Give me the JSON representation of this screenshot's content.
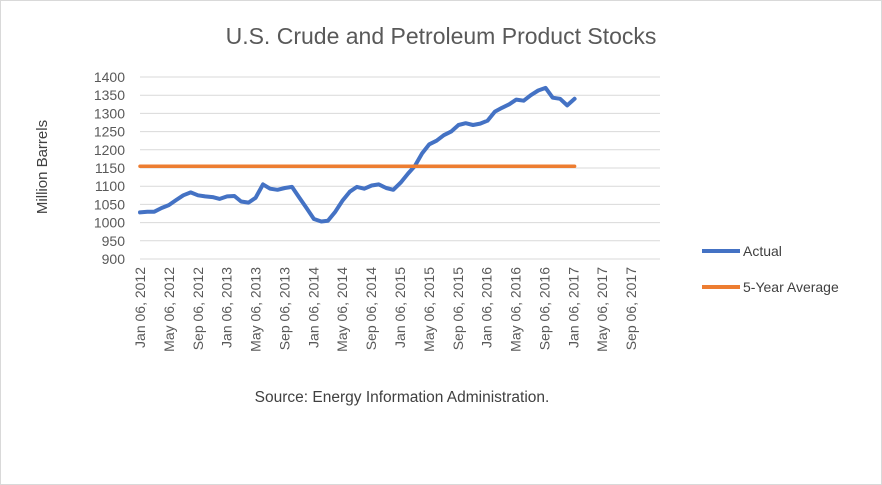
{
  "chart_data": {
    "type": "line",
    "title": "U.S. Crude and Petroleum Product Stocks",
    "xlabel": "",
    "ylabel": "Million Barrels",
    "source": "Source: Energy Information Administration.",
    "ylim": [
      900,
      1400
    ],
    "yticks": [
      "900",
      "950",
      "1000",
      "1050",
      "1100",
      "1150",
      "1200",
      "1250",
      "1300",
      "1350",
      "1400"
    ],
    "xticks": [
      "Jan 06, 2012",
      "May 06, 2012",
      "Sep 06, 2012",
      "Jan 06, 2013",
      "May 06, 2013",
      "Sep 06, 2013",
      "Jan 06, 2014",
      "May 06, 2014",
      "Sep 06, 2014",
      "Jan 06, 2015",
      "May 06, 2015",
      "Sep 06, 2015",
      "Jan 06, 2016",
      "May 06, 2016",
      "Sep 06, 2016",
      "Jan 06, 2017",
      "May 06, 2017",
      "Sep 06, 2017"
    ],
    "grid": true,
    "legend_position": "right",
    "series": [
      {
        "name": "Actual",
        "color": "#4472c4",
        "x": [
          "2012-01-06",
          "2012-02-06",
          "2012-03-06",
          "2012-04-06",
          "2012-05-06",
          "2012-06-06",
          "2012-07-06",
          "2012-08-06",
          "2012-09-06",
          "2012-10-06",
          "2012-11-06",
          "2012-12-06",
          "2013-01-06",
          "2013-02-06",
          "2013-03-06",
          "2013-04-06",
          "2013-05-06",
          "2013-06-06",
          "2013-07-06",
          "2013-08-06",
          "2013-09-06",
          "2013-10-06",
          "2013-11-06",
          "2013-12-06",
          "2014-01-06",
          "2014-02-06",
          "2014-03-06",
          "2014-04-06",
          "2014-05-06",
          "2014-06-06",
          "2014-07-06",
          "2014-08-06",
          "2014-09-06",
          "2014-10-06",
          "2014-11-06",
          "2014-12-06",
          "2015-01-06",
          "2015-02-06",
          "2015-03-06",
          "2015-04-06",
          "2015-05-06",
          "2015-06-06",
          "2015-07-06",
          "2015-08-06",
          "2015-09-06",
          "2015-10-06",
          "2015-11-06",
          "2015-12-06",
          "2016-01-06",
          "2016-02-06",
          "2016-03-06",
          "2016-04-06",
          "2016-05-06",
          "2016-06-06",
          "2016-07-06",
          "2016-08-06",
          "2016-09-06",
          "2016-10-06",
          "2016-11-06",
          "2016-12-06",
          "2017-01-06"
        ],
        "y": [
          1028,
          1030,
          1030,
          1040,
          1048,
          1062,
          1075,
          1083,
          1075,
          1072,
          1070,
          1065,
          1072,
          1073,
          1058,
          1055,
          1068,
          1105,
          1093,
          1090,
          1095,
          1098,
          1068,
          1040,
          1010,
          1003,
          1005,
          1030,
          1060,
          1085,
          1098,
          1093,
          1102,
          1105,
          1095,
          1090,
          1110,
          1135,
          1155,
          1190,
          1215,
          1225,
          1240,
          1250,
          1268,
          1273,
          1268,
          1272,
          1280,
          1305,
          1315,
          1325,
          1338,
          1335,
          1350,
          1363,
          1370,
          1343,
          1340,
          1322,
          1340
        ]
      },
      {
        "name": "5-Year Average",
        "color": "#ed7d31",
        "x": [
          "2012-01-06",
          "2017-01-06"
        ],
        "y": [
          1155,
          1155
        ]
      }
    ]
  }
}
